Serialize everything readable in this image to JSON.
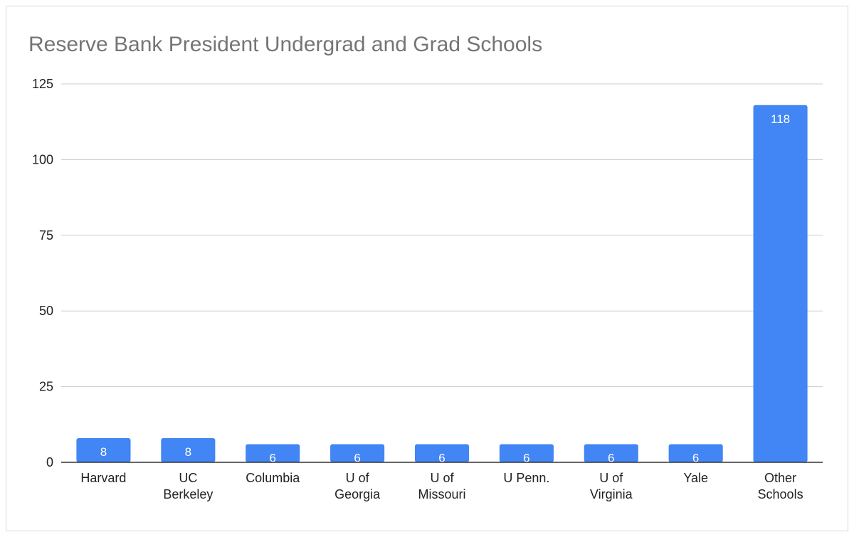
{
  "chart_data": {
    "type": "bar",
    "title": "Reserve Bank President Undergrad and Grad Schools",
    "xlabel": "",
    "ylabel": "",
    "ylim": [
      0,
      125
    ],
    "yticks": [
      "0",
      "25",
      "50",
      "75",
      "100",
      "125"
    ],
    "grid": true,
    "legend": "none",
    "categories": [
      [
        "Harvard"
      ],
      [
        "UC",
        "Berkeley"
      ],
      [
        "Columbia"
      ],
      [
        "U of",
        "Georgia"
      ],
      [
        "U of",
        "Missouri"
      ],
      [
        "U Penn."
      ],
      [
        "U of",
        "Virginia"
      ],
      [
        "Yale"
      ],
      [
        "Other",
        "Schools"
      ]
    ],
    "values": [
      8,
      8,
      6,
      6,
      6,
      6,
      6,
      6,
      118
    ],
    "data_labels": [
      "8",
      "8",
      "6",
      "6",
      "6",
      "6",
      "6",
      "6",
      "118"
    ],
    "colors": {
      "bar": "#4285f4",
      "label_inside": "#ffffff",
      "label_outside": "#4285f4",
      "grid": "#cccccc",
      "axis": "#333333"
    }
  }
}
